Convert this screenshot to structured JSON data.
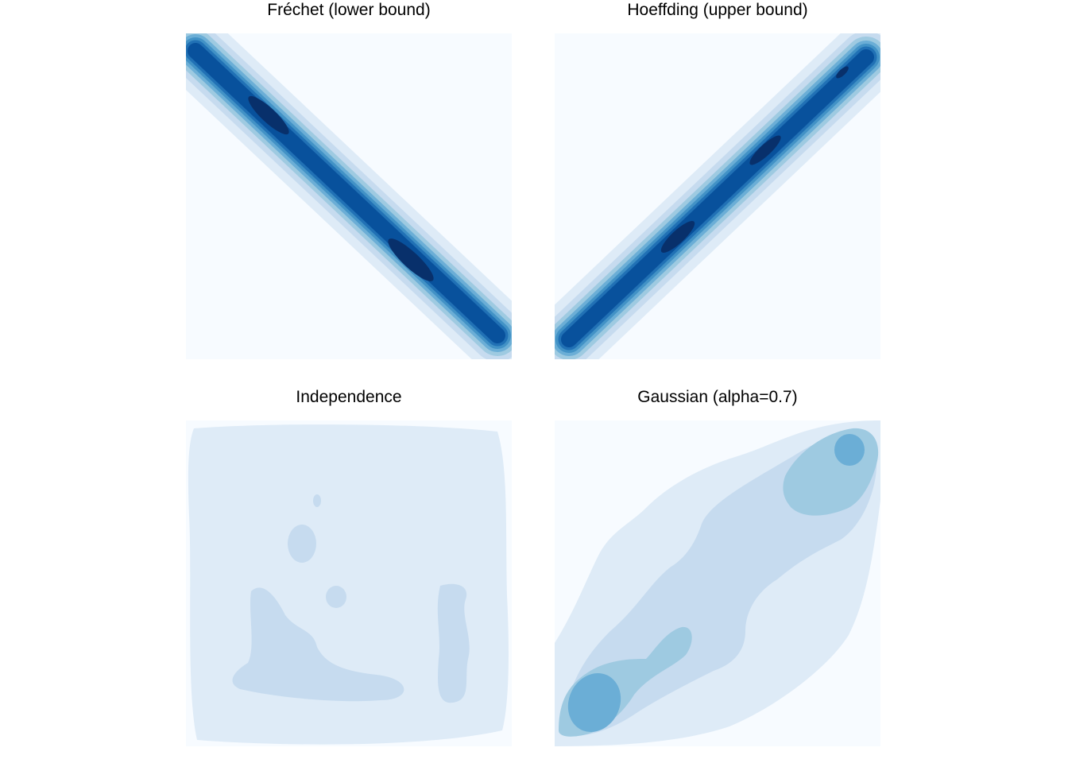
{
  "figure": {
    "panels": [
      {
        "title": "Fréchet (lower bound)"
      },
      {
        "title": "Hoeffding (upper bound)"
      },
      {
        "title": "Independence"
      },
      {
        "title": "Gaussian (alpha=0.7)"
      }
    ]
  },
  "palette": [
    "#f7fbff",
    "#deebf7",
    "#c6dbef",
    "#9ecae1",
    "#6baed6",
    "#4292c6",
    "#2171b5",
    "#08519c",
    "#08306b"
  ],
  "chart_data": [
    {
      "type": "heatmap",
      "subtype": "filled-density-contour",
      "title": "Fréchet (lower bound)",
      "xlim": [
        0,
        1
      ],
      "ylim": [
        0,
        1
      ],
      "axes": "hidden",
      "grid": false,
      "legend": "none",
      "dependence": "countermonotonic",
      "ridge": [
        [
          0,
          1
        ],
        [
          1,
          0
        ]
      ],
      "peaks": [
        {
          "x": 0.25,
          "y": 0.75
        },
        {
          "x": 0.7,
          "y": 0.3
        }
      ],
      "max_level": 8
    },
    {
      "type": "heatmap",
      "subtype": "filled-density-contour",
      "title": "Hoeffding (upper bound)",
      "xlim": [
        0,
        1
      ],
      "ylim": [
        0,
        1
      ],
      "axes": "hidden",
      "grid": false,
      "legend": "none",
      "dependence": "comonotonic",
      "ridge": [
        [
          0,
          0
        ],
        [
          1,
          1
        ]
      ],
      "peaks": [
        {
          "x": 0.38,
          "y": 0.38
        },
        {
          "x": 0.65,
          "y": 0.65
        },
        {
          "x": 0.88,
          "y": 0.88
        }
      ],
      "max_level": 8
    },
    {
      "type": "heatmap",
      "subtype": "filled-density-contour",
      "title": "Independence",
      "xlim": [
        0,
        1
      ],
      "ylim": [
        0,
        1
      ],
      "axes": "hidden",
      "grid": false,
      "legend": "none",
      "dependence": "independent",
      "max_level": 2
    },
    {
      "type": "heatmap",
      "subtype": "filled-density-contour",
      "title": "Gaussian (alpha=0.7)",
      "xlim": [
        0,
        1
      ],
      "ylim": [
        0,
        1
      ],
      "axes": "hidden",
      "grid": false,
      "legend": "none",
      "dependence": "positive",
      "alpha": 0.7,
      "peaks": [
        {
          "x": 0.12,
          "y": 0.12
        },
        {
          "x": 0.9,
          "y": 0.9
        }
      ],
      "max_level": 4
    }
  ]
}
